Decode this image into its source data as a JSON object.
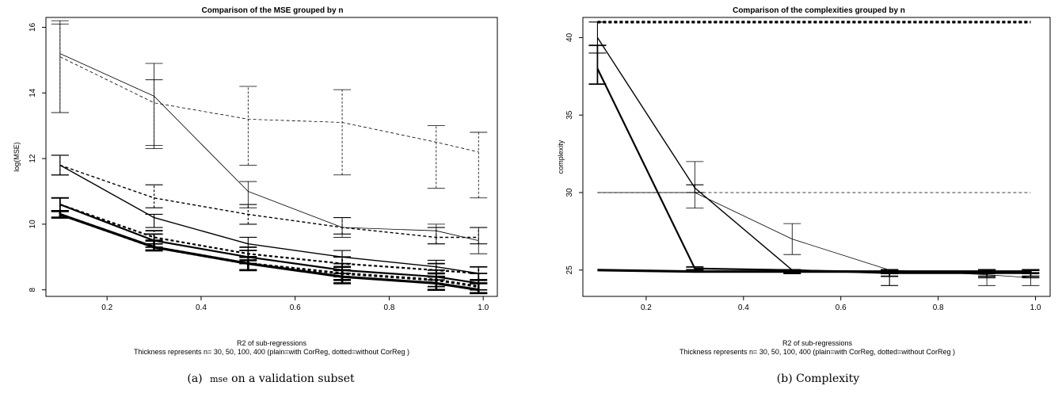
{
  "figure": {
    "captions": [
      {
        "label": "(a)",
        "smallcaps": "mse",
        "rest": " on a validation subset"
      },
      {
        "label": "(b)",
        "smallcaps": "",
        "rest": " Complexity"
      }
    ]
  },
  "chart_data": [
    {
      "type": "line",
      "title": "Comparison of the MSE grouped  by n",
      "xlabel": "R2 of sub-regressions",
      "note": "Thickness represents n=  30, 50, 100, 400 (plain=with CorReg, dotted=without CorReg )",
      "ylabel": "log(MSE)",
      "xlim": [
        0.07,
        1.03
      ],
      "ylim": [
        7.8,
        16.3
      ],
      "xticks": [
        0.2,
        0.4,
        0.6,
        0.8,
        1.0
      ],
      "xtick_labels": [
        "0.2",
        "0.4",
        "0.6",
        "0.8",
        "1.0"
      ],
      "yticks": [
        8,
        10,
        12,
        14,
        16
      ],
      "ytick_labels": [
        "8",
        "10",
        "12",
        "14",
        "16"
      ],
      "x": [
        0.1,
        0.3,
        0.5,
        0.7,
        0.9,
        0.99
      ],
      "series": [
        {
          "n": "30",
          "style": "solid",
          "values": [
            15.2,
            13.9,
            11.0,
            9.9,
            9.8,
            9.5
          ],
          "err_low": [
            13.4,
            12.3,
            10.5,
            9.6,
            9.4,
            9.1
          ],
          "err_high": [
            16.2,
            14.9,
            11.3,
            10.2,
            10.0,
            9.9
          ]
        },
        {
          "n": "30",
          "style": "dotted",
          "values": [
            15.1,
            13.7,
            13.2,
            13.1,
            12.5,
            12.2
          ],
          "err_low": [
            13.4,
            12.4,
            11.8,
            11.5,
            11.1,
            10.8
          ],
          "err_high": [
            16.1,
            14.4,
            14.2,
            14.1,
            13.0,
            12.8
          ]
        },
        {
          "n": "50",
          "style": "solid",
          "values": [
            11.8,
            10.2,
            9.4,
            9.0,
            8.7,
            8.5
          ],
          "err_low": [
            11.5,
            9.9,
            9.2,
            8.8,
            8.4,
            8.2
          ],
          "err_high": [
            12.1,
            10.3,
            9.6,
            9.2,
            8.9,
            8.7
          ]
        },
        {
          "n": "50",
          "style": "dotted",
          "values": [
            11.8,
            10.8,
            10.3,
            9.9,
            9.6,
            9.6
          ],
          "err_low": [
            11.5,
            10.5,
            10.0,
            9.7,
            9.4,
            9.4
          ],
          "err_high": [
            12.1,
            11.2,
            10.6,
            10.2,
            9.9,
            9.9
          ]
        },
        {
          "n": "100",
          "style": "solid",
          "values": [
            10.6,
            9.5,
            9.0,
            8.6,
            8.4,
            8.2
          ],
          "err_low": [
            10.4,
            9.3,
            8.8,
            8.4,
            8.1,
            8.0
          ],
          "err_high": [
            10.8,
            9.7,
            9.2,
            8.8,
            8.6,
            8.5
          ]
        },
        {
          "n": "100",
          "style": "dotted",
          "values": [
            10.6,
            9.6,
            9.1,
            8.8,
            8.6,
            8.5
          ],
          "err_low": [
            10.4,
            9.4,
            8.8,
            8.5,
            8.3,
            8.2
          ],
          "err_high": [
            10.8,
            9.8,
            9.3,
            9.0,
            8.8,
            8.7
          ]
        },
        {
          "n": "400",
          "style": "solid",
          "values": [
            10.3,
            9.3,
            8.8,
            8.4,
            8.2,
            8.0
          ],
          "err_low": [
            10.2,
            9.2,
            8.6,
            8.2,
            8.0,
            7.9
          ],
          "err_high": [
            10.4,
            9.5,
            8.9,
            8.6,
            8.4,
            8.2
          ]
        },
        {
          "n": "400",
          "style": "dotted",
          "values": [
            10.3,
            9.3,
            8.8,
            8.5,
            8.3,
            8.1
          ],
          "err_low": [
            10.2,
            9.2,
            8.6,
            8.3,
            8.0,
            7.9
          ],
          "err_high": [
            10.4,
            9.5,
            9.0,
            8.7,
            8.5,
            8.3
          ]
        }
      ]
    },
    {
      "type": "line",
      "title": "Comparison of the complexities grouped  by n",
      "xlabel": "R2 of sub-regressions",
      "note": "Thickness represents n=  30, 50, 100, 400 (plain=with CorReg, dotted=without CorReg )",
      "ylabel": "complexity",
      "xlim": [
        0.07,
        1.03
      ],
      "ylim": [
        23.3,
        41.3
      ],
      "xticks": [
        0.2,
        0.4,
        0.6,
        0.8,
        1.0
      ],
      "xtick_labels": [
        "0.2",
        "0.4",
        "0.6",
        "0.8",
        "1.0"
      ],
      "yticks": [
        25,
        30,
        35,
        40
      ],
      "ytick_labels": [
        "25",
        "30",
        "35",
        "40"
      ],
      "x": [
        0.1,
        0.3,
        0.5,
        0.7,
        0.9,
        0.99
      ],
      "series": [
        {
          "n": "30",
          "style": "solid",
          "values": [
            30.0,
            30.0,
            27.0,
            25.0,
            24.7,
            24.5
          ],
          "err_low": [
            30.0,
            29.0,
            26.0,
            25.0,
            24.0,
            24.0
          ],
          "err_high": [
            30.0,
            32.0,
            28.0,
            25.0,
            25.0,
            25.0
          ]
        },
        {
          "n": "30",
          "style": "dotted",
          "values": [
            30.0,
            30.0,
            30.0,
            30.0,
            30.0,
            30.0
          ],
          "err_low": [
            30.0,
            30.0,
            30.0,
            30.0,
            30.0,
            30.0
          ],
          "err_high": [
            30.0,
            30.0,
            30.0,
            30.0,
            30.0,
            30.0
          ]
        },
        {
          "n": "50",
          "style": "solid",
          "values": [
            40.0,
            30.3,
            25.0,
            24.9,
            24.8,
            24.8
          ],
          "err_low": [
            39.0,
            30.0,
            25.0,
            24.0,
            24.5,
            24.5
          ],
          "err_high": [
            41.0,
            30.5,
            25.0,
            25.0,
            25.0,
            25.0
          ]
        },
        {
          "n": "50",
          "style": "dotted",
          "values": [
            41.0,
            41.0,
            41.0,
            41.0,
            41.0,
            41.0
          ],
          "err_low": [
            41.0,
            41.0,
            41.0,
            41.0,
            41.0,
            41.0
          ],
          "err_high": [
            41.0,
            41.0,
            41.0,
            41.0,
            41.0,
            41.0
          ]
        },
        {
          "n": "100",
          "style": "solid",
          "values": [
            38.0,
            25.1,
            25.0,
            24.8,
            24.8,
            24.8
          ],
          "err_low": [
            37.0,
            25.0,
            24.9,
            24.6,
            24.6,
            24.6
          ],
          "err_high": [
            39.5,
            25.2,
            25.0,
            25.0,
            25.0,
            25.0
          ]
        },
        {
          "n": "100",
          "style": "dotted",
          "values": [
            41.0,
            41.0,
            41.0,
            41.0,
            41.0,
            41.0
          ],
          "err_low": [
            41.0,
            41.0,
            41.0,
            41.0,
            41.0,
            41.0
          ],
          "err_high": [
            41.0,
            41.0,
            41.0,
            41.0,
            41.0,
            41.0
          ]
        },
        {
          "n": "400",
          "style": "solid",
          "values": [
            25.0,
            24.9,
            24.9,
            24.9,
            24.9,
            24.9
          ],
          "err_low": [
            25.0,
            24.9,
            24.8,
            24.8,
            24.8,
            24.8
          ],
          "err_high": [
            25.0,
            25.0,
            25.0,
            25.0,
            25.0,
            25.0
          ]
        },
        {
          "n": "400",
          "style": "dotted",
          "values": [
            41.0,
            41.0,
            41.0,
            41.0,
            41.0,
            41.0
          ],
          "err_low": [
            41.0,
            41.0,
            41.0,
            41.0,
            41.0,
            41.0
          ],
          "err_high": [
            41.0,
            41.0,
            41.0,
            41.0,
            41.0,
            41.0
          ]
        }
      ]
    }
  ]
}
